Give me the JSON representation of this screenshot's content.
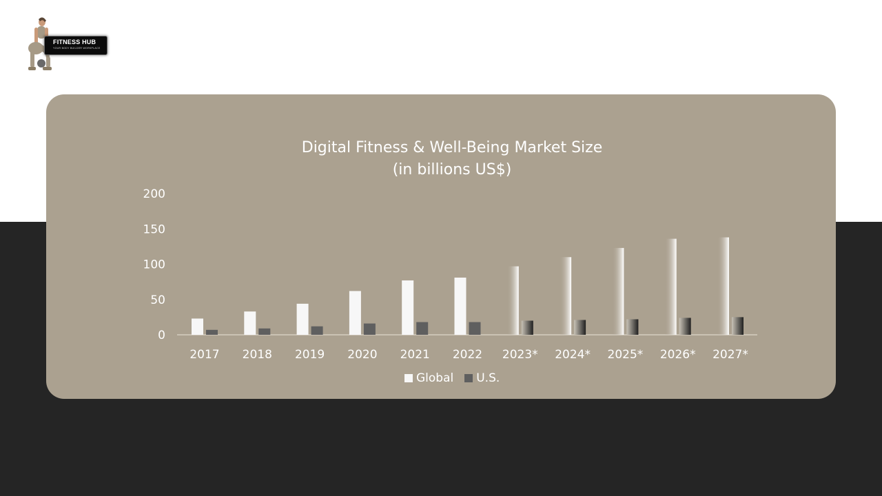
{
  "brand": {
    "name": "Fitness Hub",
    "tagline": "YOUR BODY BUILDER WORKPLACE"
  },
  "colors": {
    "card": "#aba190",
    "dark_band": "#252525",
    "global": "#f7f7f7",
    "us": "#5f5f5f"
  },
  "chart_data": {
    "type": "bar",
    "title": "Digital Fitness & Well-Being Market Size",
    "subtitle": "(in billions US$)",
    "xlabel": "",
    "ylabel": "",
    "ylim": [
      0,
      200
    ],
    "yticks": [
      0,
      50,
      100,
      150,
      200
    ],
    "grid": false,
    "legend_position": "bottom",
    "categories": [
      "2017",
      "2018",
      "2019",
      "2020",
      "2021",
      "2022",
      "2023*",
      "2024*",
      "2025*",
      "2026*",
      "2027*"
    ],
    "series": [
      {
        "name": "Global",
        "values": [
          23,
          33,
          44,
          62,
          77,
          81,
          97,
          110,
          123,
          136,
          138
        ]
      },
      {
        "name": "U.S.",
        "values": [
          7,
          9,
          12,
          16,
          18,
          18,
          20,
          21,
          22,
          24,
          25
        ]
      }
    ]
  }
}
